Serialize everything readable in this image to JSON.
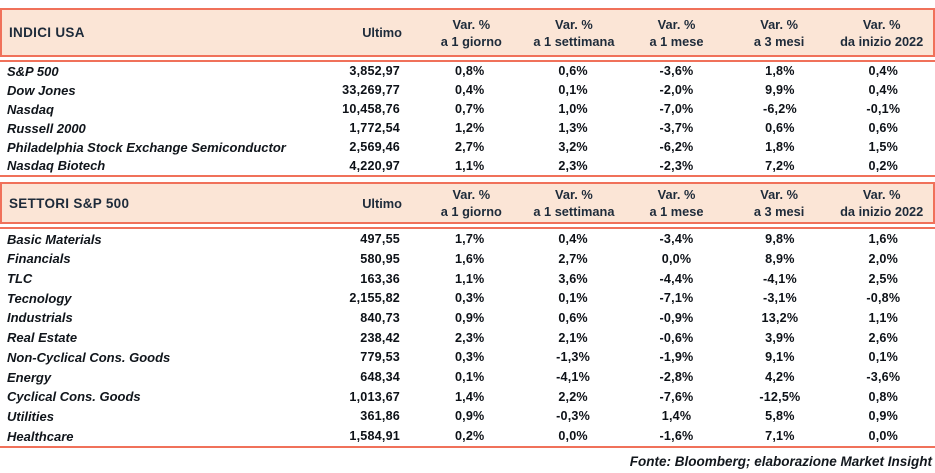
{
  "colors": {
    "accent_border": "#F0715A",
    "header_background": "#FBE5D6",
    "header_text": "#1E2B3A",
    "body_text": "#10151B"
  },
  "columns": {
    "ultimo": "Ultimo",
    "vars": [
      {
        "l1": "Var. %",
        "l2": "a 1 giorno"
      },
      {
        "l1": "Var. %",
        "l2": "a 1 settimana"
      },
      {
        "l1": "Var. %",
        "l2": "a 1 mese"
      },
      {
        "l1": "Var. %",
        "l2": "a 3 mesi"
      },
      {
        "l1": "Var. %",
        "l2": "da inizio 2022"
      }
    ]
  },
  "tables": [
    {
      "title": "INDICI USA",
      "rows": [
        {
          "name": "S&P 500",
          "ultimo": "3,852,97",
          "vars": [
            "0,8%",
            "0,6%",
            "-3,6%",
            "1,8%",
            "0,4%"
          ]
        },
        {
          "name": "Dow Jones",
          "ultimo": "33,269,77",
          "vars": [
            "0,4%",
            "0,1%",
            "-2,0%",
            "9,9%",
            "0,4%"
          ]
        },
        {
          "name": "Nasdaq",
          "ultimo": "10,458,76",
          "vars": [
            "0,7%",
            "1,0%",
            "-7,0%",
            "-6,2%",
            "-0,1%"
          ]
        },
        {
          "name": "Russell 2000",
          "ultimo": "1,772,54",
          "vars": [
            "1,2%",
            "1,3%",
            "-3,7%",
            "0,6%",
            "0,6%"
          ]
        },
        {
          "name": "Philadelphia Stock Exchange Semiconductor",
          "ultimo": "2,569,46",
          "vars": [
            "2,7%",
            "3,2%",
            "-6,2%",
            "1,8%",
            "1,5%"
          ]
        },
        {
          "name": "Nasdaq Biotech",
          "ultimo": "4,220,97",
          "vars": [
            "1,1%",
            "2,3%",
            "-2,3%",
            "7,2%",
            "0,2%"
          ]
        }
      ]
    },
    {
      "title": "SETTORI S&P 500",
      "rows": [
        {
          "name": "Basic Materials",
          "ultimo": "497,55",
          "vars": [
            "1,7%",
            "0,4%",
            "-3,4%",
            "9,8%",
            "1,6%"
          ]
        },
        {
          "name": "Financials",
          "ultimo": "580,95",
          "vars": [
            "1,6%",
            "2,7%",
            "0,0%",
            "8,9%",
            "2,0%"
          ]
        },
        {
          "name": "TLC",
          "ultimo": "163,36",
          "vars": [
            "1,1%",
            "3,6%",
            "-4,4%",
            "-4,1%",
            "2,5%"
          ]
        },
        {
          "name": "Tecnology",
          "ultimo": "2,155,82",
          "vars": [
            "0,3%",
            "0,1%",
            "-7,1%",
            "-3,1%",
            "-0,8%"
          ]
        },
        {
          "name": "Industrials",
          "ultimo": "840,73",
          "vars": [
            "0,9%",
            "0,6%",
            "-0,9%",
            "13,2%",
            "1,1%"
          ]
        },
        {
          "name": "Real Estate",
          "ultimo": "238,42",
          "vars": [
            "2,3%",
            "2,1%",
            "-0,6%",
            "3,9%",
            "2,6%"
          ]
        },
        {
          "name": "Non-Cyclical Cons. Goods",
          "ultimo": "779,53",
          "vars": [
            "0,3%",
            "-1,3%",
            "-1,9%",
            "9,1%",
            "0,1%"
          ]
        },
        {
          "name": "Energy",
          "ultimo": "648,34",
          "vars": [
            "0,1%",
            "-4,1%",
            "-2,8%",
            "4,2%",
            "-3,6%"
          ]
        },
        {
          "name": "Cyclical Cons. Goods",
          "ultimo": "1,013,67",
          "vars": [
            "1,4%",
            "2,2%",
            "-7,6%",
            "-12,5%",
            "0,8%"
          ]
        },
        {
          "name": "Utilities",
          "ultimo": "361,86",
          "vars": [
            "0,9%",
            "-0,3%",
            "1,4%",
            "5,8%",
            "0,9%"
          ]
        },
        {
          "name": "Healthcare",
          "ultimo": "1,584,91",
          "vars": [
            "0,2%",
            "0,0%",
            "-1,6%",
            "7,1%",
            "0,0%"
          ]
        }
      ]
    }
  ],
  "footer": "Fonte: Bloomberg; elaborazione Market Insight"
}
